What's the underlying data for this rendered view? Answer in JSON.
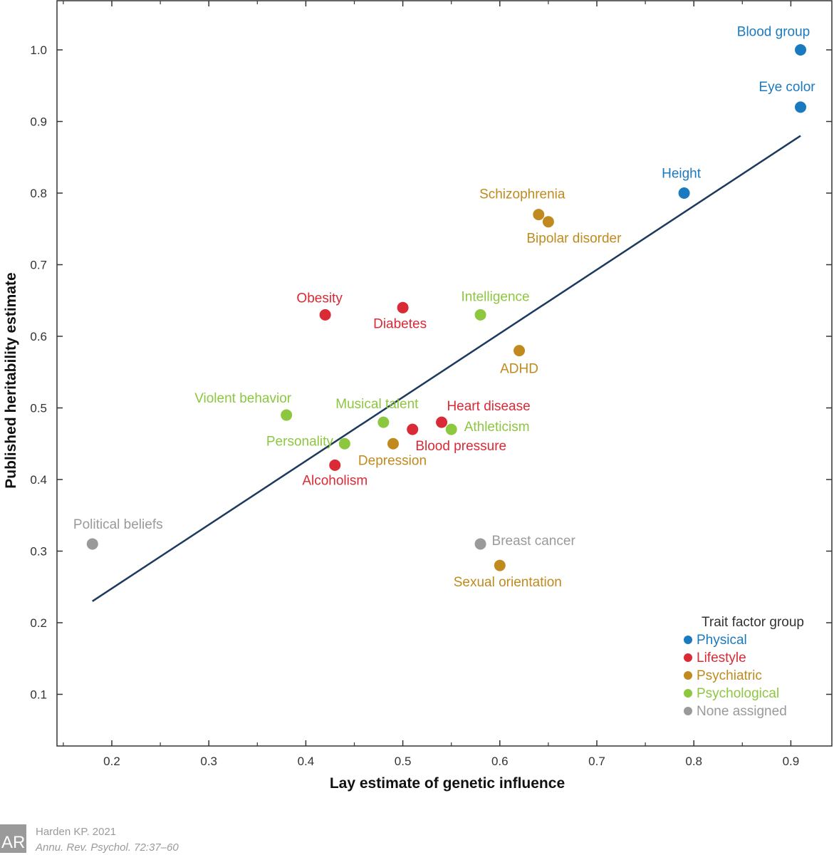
{
  "chart_data": {
    "type": "scatter",
    "xlabel": "Lay estimate of genetic influence",
    "ylabel": "Published heritability estimate",
    "xlim": [
      0.143,
      0.943
    ],
    "ylim": [
      0.027,
      1.07
    ],
    "xticks": [
      "0.2",
      "0.3",
      "0.4",
      "0.5",
      "0.6",
      "0.7",
      "0.8",
      "0.9"
    ],
    "yticks": [
      "0.1",
      "0.2",
      "0.3",
      "0.4",
      "0.5",
      "0.6",
      "0.7",
      "0.8",
      "0.9",
      "1.0"
    ],
    "grid": false,
    "legend": {
      "title": "Trait factor group",
      "placement": "bottom-right",
      "entries": [
        {
          "name": "Physical",
          "color": "#1a7abf"
        },
        {
          "name": "Lifestyle",
          "color": "#d92a35"
        },
        {
          "name": "Psychiatric",
          "color": "#c08a1e"
        },
        {
          "name": "Psychological",
          "color": "#8dc63f"
        },
        {
          "name": "None assigned",
          "color": "#9a9a9a"
        }
      ]
    },
    "points": [
      {
        "label": "Blood group",
        "group": "Physical",
        "x": 0.91,
        "y": 1.0
      },
      {
        "label": "Eye color",
        "group": "Physical",
        "x": 0.91,
        "y": 0.92
      },
      {
        "label": "Height",
        "group": "Physical",
        "x": 0.79,
        "y": 0.8
      },
      {
        "label": "Schizophrenia",
        "group": "Psychiatric",
        "x": 0.64,
        "y": 0.77
      },
      {
        "label": "Bipolar disorder",
        "group": "Psychiatric",
        "x": 0.65,
        "y": 0.76
      },
      {
        "label": "Obesity",
        "group": "Lifestyle",
        "x": 0.42,
        "y": 0.63
      },
      {
        "label": "Diabetes",
        "group": "Lifestyle",
        "x": 0.5,
        "y": 0.64
      },
      {
        "label": "Intelligence",
        "group": "Psychological",
        "x": 0.58,
        "y": 0.63
      },
      {
        "label": "ADHD",
        "group": "Psychiatric",
        "x": 0.62,
        "y": 0.58
      },
      {
        "label": "Violent behavior",
        "group": "Psychological",
        "x": 0.38,
        "y": 0.49
      },
      {
        "label": "Musical talent",
        "group": "Psychological",
        "x": 0.48,
        "y": 0.48
      },
      {
        "label": "Heart disease",
        "group": "Lifestyle",
        "x": 0.54,
        "y": 0.48
      },
      {
        "label": "Blood pressure",
        "group": "Lifestyle",
        "x": 0.51,
        "y": 0.47
      },
      {
        "label": "Athleticism",
        "group": "Psychological",
        "x": 0.55,
        "y": 0.47
      },
      {
        "label": "Personality",
        "group": "Psychological",
        "x": 0.44,
        "y": 0.45
      },
      {
        "label": "Depression",
        "group": "Psychiatric",
        "x": 0.49,
        "y": 0.45
      },
      {
        "label": "Alcoholism",
        "group": "Lifestyle",
        "x": 0.43,
        "y": 0.42
      },
      {
        "label": "Political beliefs",
        "group": "None assigned",
        "x": 0.18,
        "y": 0.31
      },
      {
        "label": "Breast cancer",
        "group": "None assigned",
        "x": 0.58,
        "y": 0.31
      },
      {
        "label": "Sexual orientation",
        "group": "Psychiatric",
        "x": 0.6,
        "y": 0.28
      }
    ],
    "fit_line": {
      "x": [
        0.18,
        0.91
      ],
      "y": [
        0.23,
        0.88
      ],
      "color": "#1b3a5c"
    }
  },
  "citation": {
    "logo_text": "AR",
    "line1": "Harden KP. 2021",
    "line2": "Annu. Rev. Psychol. 72:37–60"
  }
}
